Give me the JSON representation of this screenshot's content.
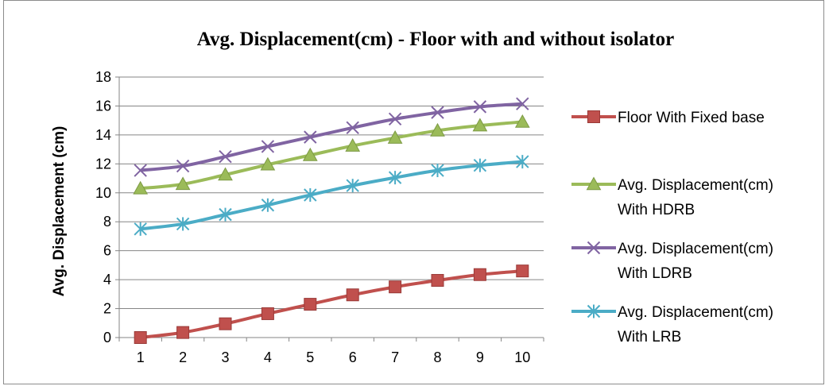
{
  "chart_data": {
    "type": "line",
    "title": "Avg. Displacement(cm) - Floor with and without isolator",
    "xlabel": "",
    "ylabel": "Avg. Displacement (cm)",
    "x": [
      1,
      2,
      3,
      4,
      5,
      6,
      7,
      8,
      9,
      10
    ],
    "x_tick_labels": [
      "1",
      "2",
      "3",
      "4",
      "5",
      "6",
      "7",
      "8",
      "9",
      "10"
    ],
    "ylim": [
      0,
      18
    ],
    "y_tick_labels": [
      "0",
      "2",
      "4",
      "6",
      "8",
      "10",
      "12",
      "14",
      "16",
      "18"
    ],
    "grid": "horizontal major gridlines",
    "legend_position": "right",
    "series": [
      {
        "name": "Floor With Fixed base",
        "legend_lines": [
          "Floor With Fixed base"
        ],
        "color": "#C0504D",
        "marker": "square",
        "values": [
          0,
          0.35,
          0.95,
          1.65,
          2.3,
          2.95,
          3.5,
          3.95,
          4.35,
          4.6
        ]
      },
      {
        "name": "Avg. Displacement(cm) With HDRB",
        "legend_lines": [
          "Avg. Displacement(cm)",
          "With HDRB"
        ],
        "color": "#9BBB59",
        "marker": "triangle",
        "values": [
          10.3,
          10.6,
          11.25,
          11.95,
          12.6,
          13.25,
          13.8,
          14.3,
          14.65,
          14.9
        ]
      },
      {
        "name": "Avg. Displacement(cm) With LDRB",
        "legend_lines": [
          "Avg. Displacement(cm)",
          "With LDRB"
        ],
        "color": "#8064A2",
        "marker": "x",
        "values": [
          11.55,
          11.85,
          12.5,
          13.2,
          13.85,
          14.5,
          15.1,
          15.55,
          15.95,
          16.15
        ]
      },
      {
        "name": "Avg. Displacement(cm) With LRB",
        "legend_lines": [
          "Avg. Displacement(cm)",
          "With LRB"
        ],
        "color": "#4BACC6",
        "marker": "star",
        "values": [
          7.5,
          7.85,
          8.5,
          9.15,
          9.85,
          10.5,
          11.05,
          11.55,
          11.9,
          12.15
        ]
      }
    ]
  }
}
